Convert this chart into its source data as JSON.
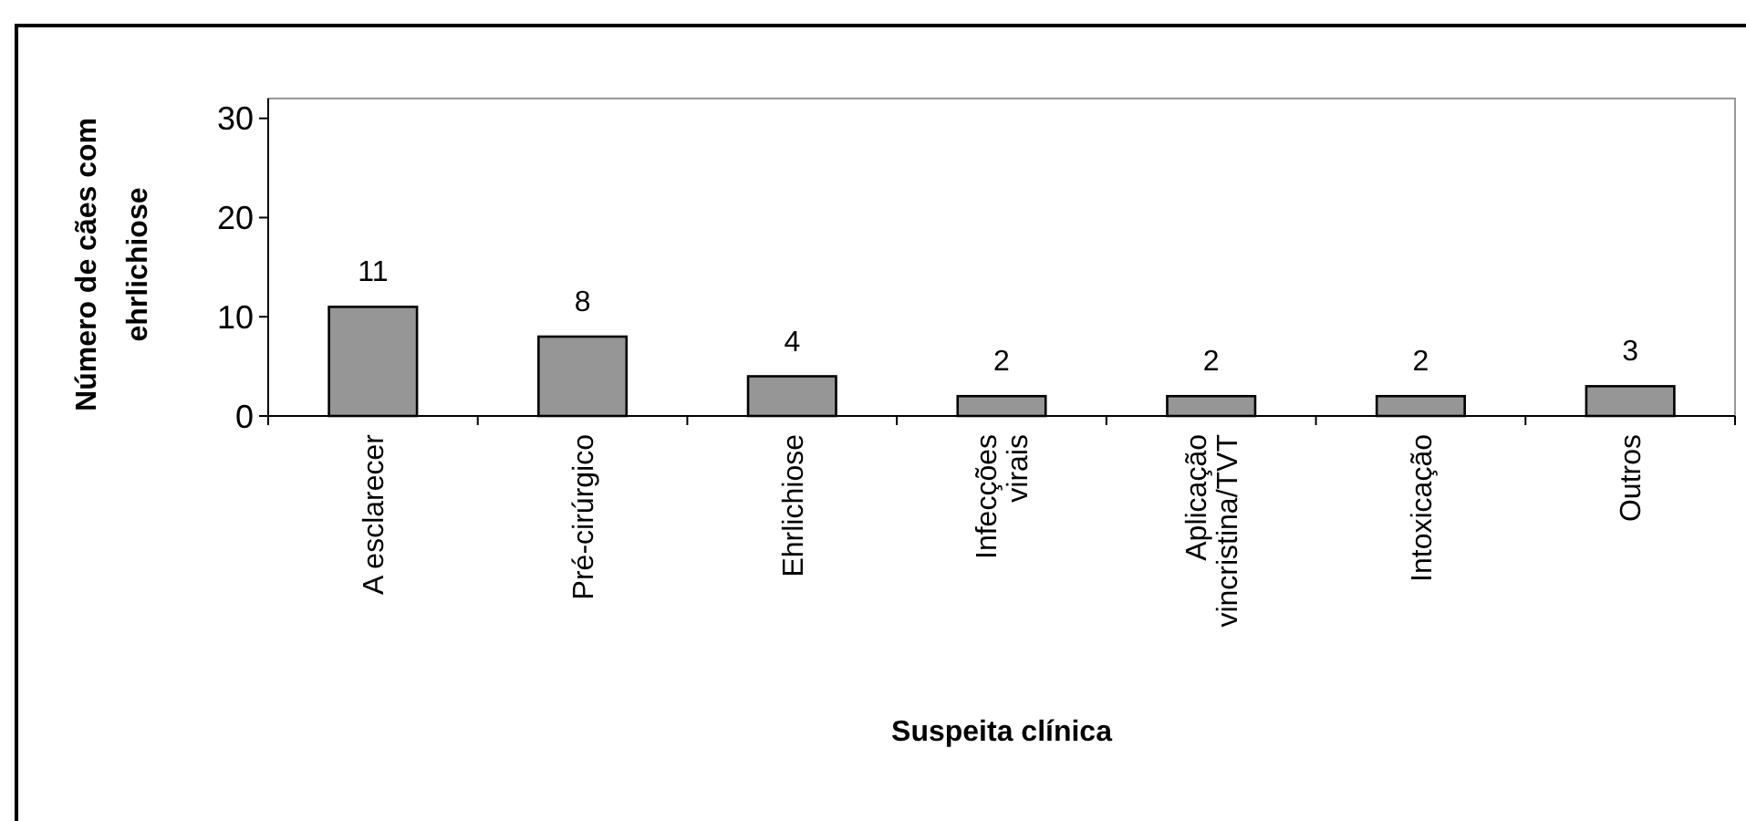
{
  "chart_data": {
    "type": "bar",
    "xlabel": "Suspeita clínica",
    "ylabel": "Número de cães com ehrlichiose",
    "categories": [
      "A esclarecer",
      "Pré-cirúrgico",
      "Ehrlichiose",
      "Infecções virais",
      "Aplicação vincristina/TVT",
      "Intoxicação",
      "Outros"
    ],
    "values": [
      11,
      8,
      4,
      2,
      2,
      2,
      3
    ],
    "color": "#969696",
    "ylim": [
      0,
      32
    ],
    "yticks": [
      0,
      10,
      20,
      30
    ],
    "data_labels": true,
    "grid": false
  }
}
